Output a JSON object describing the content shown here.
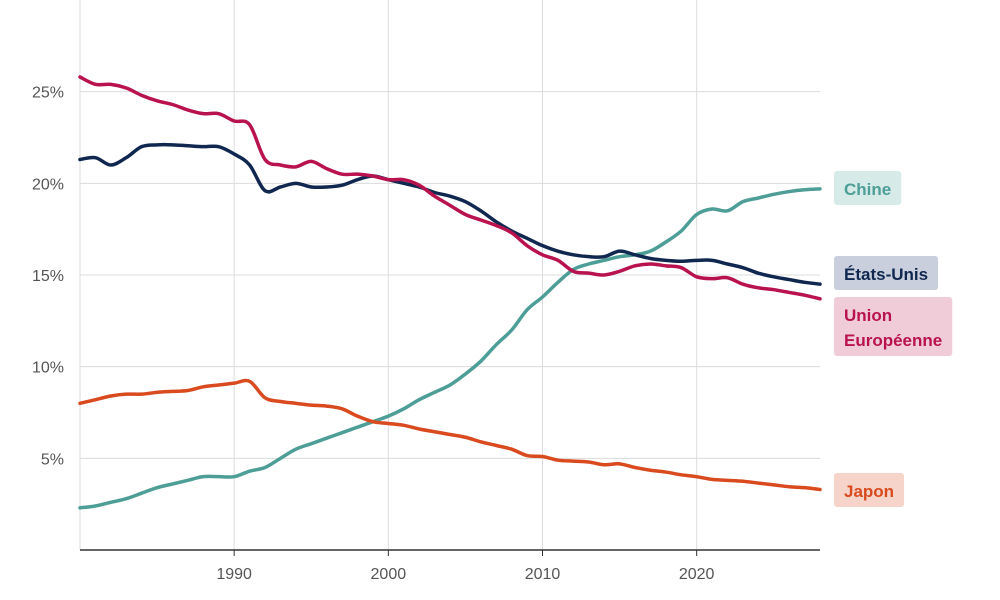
{
  "chart_data": {
    "type": "line",
    "title": "",
    "xlabel": "",
    "ylabel": "",
    "xlim": [
      1980,
      2028
    ],
    "ylim": [
      0,
      30
    ],
    "x_ticks": [
      1990,
      2000,
      2010,
      2020
    ],
    "y_ticks": [
      5,
      10,
      15,
      20,
      25
    ],
    "y_tick_labels": [
      "5%",
      "10%",
      "15%",
      "20%",
      "25%"
    ],
    "grid": true,
    "legend": "inline-right",
    "series": [
      {
        "name": "Chine",
        "color": "#4c9e96",
        "label_bg": "#d6ebe8",
        "points": [
          [
            1980,
            2.3
          ],
          [
            1981,
            2.4
          ],
          [
            1982,
            2.6
          ],
          [
            1983,
            2.8
          ],
          [
            1984,
            3.1
          ],
          [
            1985,
            3.4
          ],
          [
            1986,
            3.6
          ],
          [
            1987,
            3.8
          ],
          [
            1988,
            4.0
          ],
          [
            1989,
            4.0
          ],
          [
            1990,
            4.0
          ],
          [
            1991,
            4.3
          ],
          [
            1992,
            4.5
          ],
          [
            1993,
            5.0
          ],
          [
            1994,
            5.5
          ],
          [
            1995,
            5.8
          ],
          [
            1996,
            6.1
          ],
          [
            1997,
            6.4
          ],
          [
            1998,
            6.7
          ],
          [
            1999,
            7.0
          ],
          [
            2000,
            7.3
          ],
          [
            2001,
            7.7
          ],
          [
            2002,
            8.2
          ],
          [
            2003,
            8.6
          ],
          [
            2004,
            9.0
          ],
          [
            2005,
            9.6
          ],
          [
            2006,
            10.3
          ],
          [
            2007,
            11.2
          ],
          [
            2008,
            12.0
          ],
          [
            2009,
            13.1
          ],
          [
            2010,
            13.8
          ],
          [
            2011,
            14.6
          ],
          [
            2012,
            15.3
          ],
          [
            2013,
            15.6
          ],
          [
            2014,
            15.8
          ],
          [
            2015,
            16.0
          ],
          [
            2016,
            16.1
          ],
          [
            2017,
            16.3
          ],
          [
            2018,
            16.8
          ],
          [
            2019,
            17.4
          ],
          [
            2020,
            18.3
          ],
          [
            2021,
            18.6
          ],
          [
            2022,
            18.5
          ],
          [
            2023,
            19.0
          ],
          [
            2024,
            19.2
          ],
          [
            2025,
            19.4
          ],
          [
            2026,
            19.55
          ],
          [
            2027,
            19.65
          ],
          [
            2028,
            19.7
          ]
        ]
      },
      {
        "name": "États-Unis",
        "color": "#10284f",
        "label_bg": "#c9cfdc",
        "points": [
          [
            1980,
            21.3
          ],
          [
            1981,
            21.4
          ],
          [
            1982,
            21.0
          ],
          [
            1983,
            21.4
          ],
          [
            1984,
            22.0
          ],
          [
            1985,
            22.1
          ],
          [
            1986,
            22.1
          ],
          [
            1987,
            22.05
          ],
          [
            1988,
            22.0
          ],
          [
            1989,
            22.0
          ],
          [
            1990,
            21.6
          ],
          [
            1991,
            21.0
          ],
          [
            1992,
            19.6
          ],
          [
            1993,
            19.8
          ],
          [
            1994,
            20.0
          ],
          [
            1995,
            19.8
          ],
          [
            1996,
            19.8
          ],
          [
            1997,
            19.9
          ],
          [
            1998,
            20.2
          ],
          [
            1999,
            20.4
          ],
          [
            2000,
            20.2
          ],
          [
            2001,
            20.0
          ],
          [
            2002,
            19.8
          ],
          [
            2003,
            19.5
          ],
          [
            2004,
            19.3
          ],
          [
            2005,
            19.0
          ],
          [
            2006,
            18.5
          ],
          [
            2007,
            17.9
          ],
          [
            2008,
            17.4
          ],
          [
            2009,
            17.0
          ],
          [
            2010,
            16.6
          ],
          [
            2011,
            16.3
          ],
          [
            2012,
            16.1
          ],
          [
            2013,
            16.0
          ],
          [
            2014,
            16.0
          ],
          [
            2015,
            16.3
          ],
          [
            2016,
            16.1
          ],
          [
            2017,
            15.9
          ],
          [
            2018,
            15.8
          ],
          [
            2019,
            15.75
          ],
          [
            2020,
            15.8
          ],
          [
            2021,
            15.8
          ],
          [
            2022,
            15.6
          ],
          [
            2023,
            15.4
          ],
          [
            2024,
            15.1
          ],
          [
            2025,
            14.9
          ],
          [
            2026,
            14.75
          ],
          [
            2027,
            14.6
          ],
          [
            2028,
            14.5
          ]
        ]
      },
      {
        "name": "Union Européenne",
        "color": "#b8134f",
        "label_bg": "#f0ccd8",
        "points": [
          [
            1980,
            25.8
          ],
          [
            1981,
            25.4
          ],
          [
            1982,
            25.4
          ],
          [
            1983,
            25.2
          ],
          [
            1984,
            24.8
          ],
          [
            1985,
            24.5
          ],
          [
            1986,
            24.3
          ],
          [
            1987,
            24.0
          ],
          [
            1988,
            23.8
          ],
          [
            1989,
            23.8
          ],
          [
            1990,
            23.4
          ],
          [
            1991,
            23.2
          ],
          [
            1992,
            21.3
          ],
          [
            1993,
            21.0
          ],
          [
            1994,
            20.9
          ],
          [
            1995,
            21.2
          ],
          [
            1996,
            20.8
          ],
          [
            1997,
            20.5
          ],
          [
            1998,
            20.5
          ],
          [
            1999,
            20.4
          ],
          [
            2000,
            20.2
          ],
          [
            2001,
            20.2
          ],
          [
            2002,
            19.9
          ],
          [
            2003,
            19.3
          ],
          [
            2004,
            18.8
          ],
          [
            2005,
            18.3
          ],
          [
            2006,
            18.0
          ],
          [
            2007,
            17.7
          ],
          [
            2008,
            17.3
          ],
          [
            2009,
            16.6
          ],
          [
            2010,
            16.1
          ],
          [
            2011,
            15.8
          ],
          [
            2012,
            15.2
          ],
          [
            2013,
            15.1
          ],
          [
            2014,
            15.0
          ],
          [
            2015,
            15.2
          ],
          [
            2016,
            15.5
          ],
          [
            2017,
            15.6
          ],
          [
            2018,
            15.5
          ],
          [
            2019,
            15.4
          ],
          [
            2020,
            14.9
          ],
          [
            2021,
            14.8
          ],
          [
            2022,
            14.85
          ],
          [
            2023,
            14.5
          ],
          [
            2024,
            14.3
          ],
          [
            2025,
            14.2
          ],
          [
            2026,
            14.05
          ],
          [
            2027,
            13.9
          ],
          [
            2028,
            13.7
          ]
        ]
      },
      {
        "name": "Japon",
        "color": "#d94a1f",
        "label_bg": "#f7d4ca",
        "points": [
          [
            1980,
            8.0
          ],
          [
            1981,
            8.2
          ],
          [
            1982,
            8.4
          ],
          [
            1983,
            8.5
          ],
          [
            1984,
            8.5
          ],
          [
            1985,
            8.6
          ],
          [
            1986,
            8.65
          ],
          [
            1987,
            8.7
          ],
          [
            1988,
            8.9
          ],
          [
            1989,
            9.0
          ],
          [
            1990,
            9.1
          ],
          [
            1991,
            9.2
          ],
          [
            1992,
            8.3
          ],
          [
            1993,
            8.1
          ],
          [
            1994,
            8.0
          ],
          [
            1995,
            7.9
          ],
          [
            1996,
            7.85
          ],
          [
            1997,
            7.7
          ],
          [
            1998,
            7.3
          ],
          [
            1999,
            7.0
          ],
          [
            2000,
            6.9
          ],
          [
            2001,
            6.8
          ],
          [
            2002,
            6.6
          ],
          [
            2003,
            6.45
          ],
          [
            2004,
            6.3
          ],
          [
            2005,
            6.15
          ],
          [
            2006,
            5.9
          ],
          [
            2007,
            5.7
          ],
          [
            2008,
            5.5
          ],
          [
            2009,
            5.15
          ],
          [
            2010,
            5.1
          ],
          [
            2011,
            4.9
          ],
          [
            2012,
            4.85
          ],
          [
            2013,
            4.8
          ],
          [
            2014,
            4.65
          ],
          [
            2015,
            4.7
          ],
          [
            2016,
            4.5
          ],
          [
            2017,
            4.35
          ],
          [
            2018,
            4.25
          ],
          [
            2019,
            4.1
          ],
          [
            2020,
            4.0
          ],
          [
            2021,
            3.85
          ],
          [
            2022,
            3.8
          ],
          [
            2023,
            3.75
          ],
          [
            2024,
            3.65
          ],
          [
            2025,
            3.55
          ],
          [
            2026,
            3.45
          ],
          [
            2027,
            3.4
          ],
          [
            2028,
            3.3
          ]
        ]
      }
    ],
    "labels": [
      {
        "series": "Chine",
        "lines": [
          "Chine"
        ]
      },
      {
        "series": "États-Unis",
        "lines": [
          "États-Unis"
        ]
      },
      {
        "series": "Union Européenne",
        "lines": [
          "Union",
          "Européenne"
        ]
      },
      {
        "series": "Japon",
        "lines": [
          "Japon"
        ]
      }
    ]
  }
}
